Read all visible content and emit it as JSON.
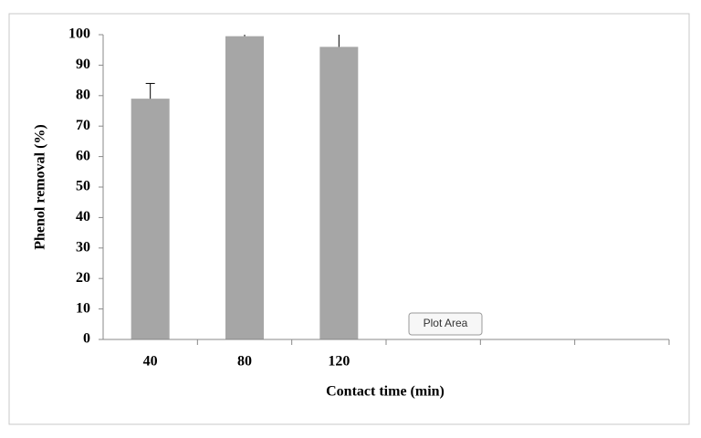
{
  "chart_data": {
    "type": "bar",
    "x_label": "Contact time (min)",
    "y_label": "Phenol removal (%)",
    "categories": [
      "40",
      "80",
      "120",
      null,
      null,
      null
    ],
    "values": [
      79,
      99.5,
      96,
      null,
      null,
      null
    ],
    "errors": [
      5,
      5,
      5,
      null,
      null,
      null
    ],
    "color": "#a6a6a6",
    "ylim": [
      0,
      100
    ],
    "yticks": [
      0,
      10,
      20,
      30,
      40,
      50,
      60,
      70,
      80,
      90,
      100
    ],
    "grid": false
  },
  "tooltip": "Plot Area"
}
